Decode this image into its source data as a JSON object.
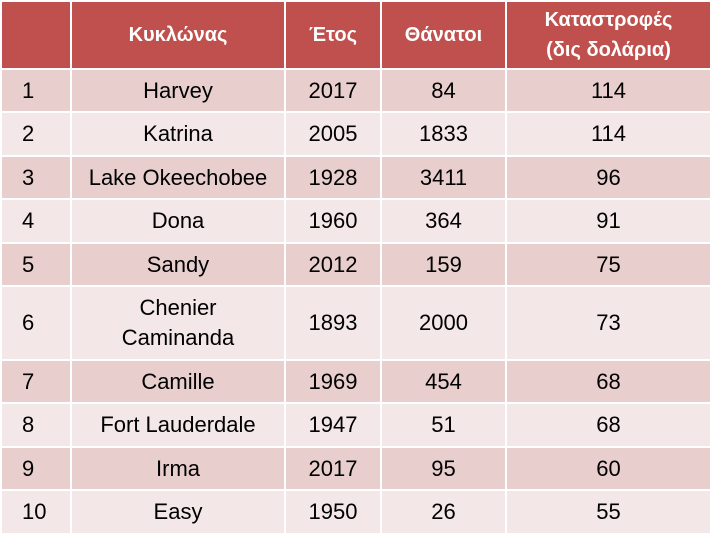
{
  "table": {
    "header": [
      "Κυκλώνας",
      "Έτος",
      "Θάνατοι",
      "Καταστροφές\n(δις δολάρια)"
    ],
    "rows": [
      [
        1,
        "Harvey",
        2017,
        84,
        114
      ],
      [
        2,
        "Katrina",
        2005,
        1833,
        114
      ],
      [
        3,
        "Lake Okeechobee",
        1928,
        3411,
        96
      ],
      [
        4,
        "Dona",
        1960,
        364,
        91
      ],
      [
        5,
        "Sandy",
        2012,
        159,
        75
      ],
      [
        6,
        "Chenier\nCaminanda",
        1893,
        2000,
        73
      ],
      [
        7,
        "Camille",
        1969,
        454,
        68
      ],
      [
        8,
        "Fort Lauderdale",
        1947,
        51,
        68
      ],
      [
        9,
        "Irma",
        2017,
        95,
        60
      ],
      [
        10,
        "Easy",
        1950,
        26,
        55
      ]
    ]
  }
}
